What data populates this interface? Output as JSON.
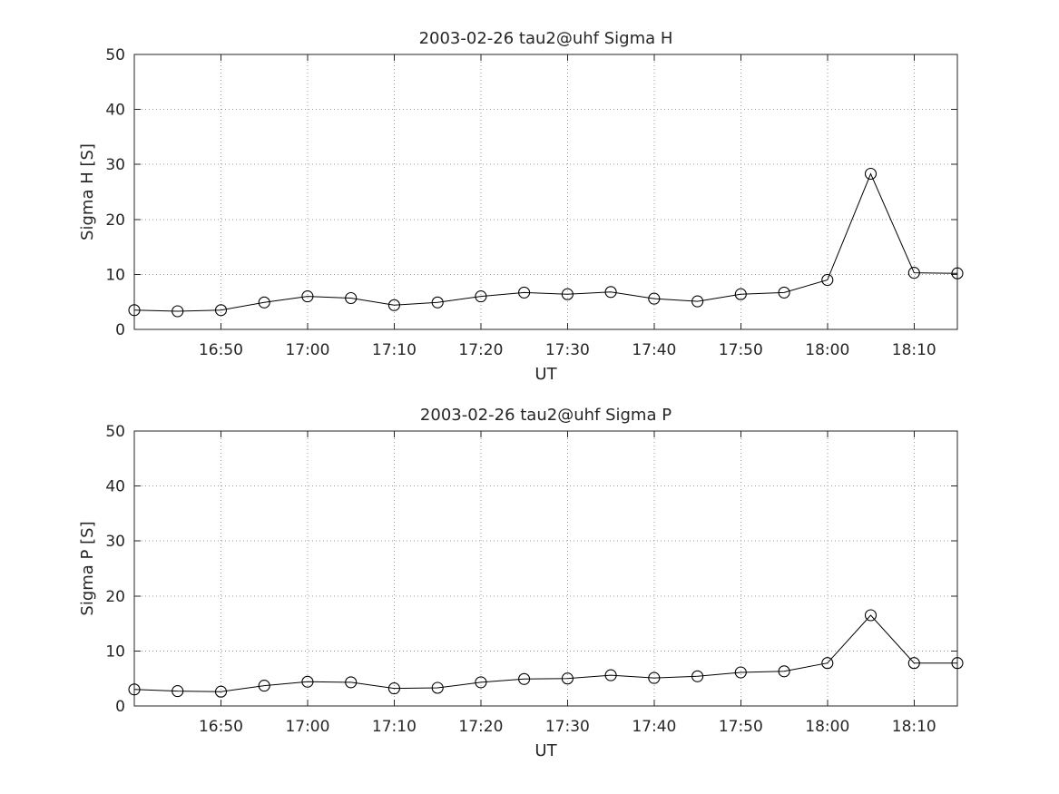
{
  "figure": {
    "background": "#ffffff",
    "axis_color": "#262626",
    "text_color": "#262626",
    "grid_color": "#999999",
    "series_color": "#000000"
  },
  "chart_data": [
    {
      "type": "line",
      "title": "2003-02-26  tau2@uhf Sigma H",
      "xlabel": "UT",
      "ylabel": "Sigma H [S]",
      "ylim": [
        0,
        50
      ],
      "yticks": [
        0,
        10,
        20,
        30,
        40,
        50
      ],
      "xlim": [
        "16:40",
        "18:15"
      ],
      "xticks": [
        "16:50",
        "17:00",
        "17:10",
        "17:20",
        "17:30",
        "17:40",
        "17:50",
        "18:00",
        "18:10"
      ],
      "grid": true,
      "marker": "open-circle",
      "series": [
        {
          "name": "Sigma H",
          "x": [
            "16:40",
            "16:45",
            "16:50",
            "16:55",
            "17:00",
            "17:05",
            "17:10",
            "17:15",
            "17:20",
            "17:25",
            "17:30",
            "17:35",
            "17:40",
            "17:45",
            "17:50",
            "17:55",
            "18:00",
            "18:05",
            "18:10",
            "18:15"
          ],
          "values": [
            3.5,
            3.3,
            3.5,
            4.9,
            6.0,
            5.7,
            4.4,
            4.9,
            6.0,
            6.7,
            6.4,
            6.8,
            5.6,
            5.1,
            6.4,
            6.7,
            9.0,
            28.3,
            10.3,
            10.2
          ]
        }
      ]
    },
    {
      "type": "line",
      "title": "2003-02-26  tau2@uhf Sigma P",
      "xlabel": "UT",
      "ylabel": "Sigma P [S]",
      "ylim": [
        0,
        50
      ],
      "yticks": [
        0,
        10,
        20,
        30,
        40,
        50
      ],
      "xlim": [
        "16:40",
        "18:15"
      ],
      "xticks": [
        "16:50",
        "17:00",
        "17:10",
        "17:20",
        "17:30",
        "17:40",
        "17:50",
        "18:00",
        "18:10"
      ],
      "grid": true,
      "marker": "open-circle",
      "series": [
        {
          "name": "Sigma P",
          "x": [
            "16:40",
            "16:45",
            "16:50",
            "16:55",
            "17:00",
            "17:05",
            "17:10",
            "17:15",
            "17:20",
            "17:25",
            "17:30",
            "17:35",
            "17:40",
            "17:45",
            "17:50",
            "17:55",
            "18:00",
            "18:05",
            "18:10",
            "18:15"
          ],
          "values": [
            3.0,
            2.7,
            2.6,
            3.7,
            4.4,
            4.3,
            3.2,
            3.3,
            4.3,
            4.9,
            5.0,
            5.6,
            5.1,
            5.4,
            6.1,
            6.3,
            7.8,
            16.5,
            7.8,
            7.8
          ]
        }
      ]
    }
  ]
}
